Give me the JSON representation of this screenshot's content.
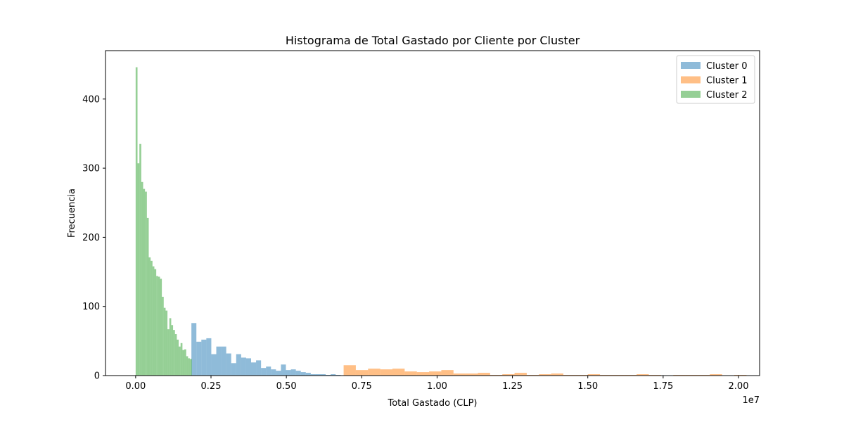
{
  "chart_data": {
    "type": "bar",
    "title": "Histograma de Total Gastado por Cliente por Cluster",
    "xlabel": "Total Gastado (CLP)",
    "ylabel": "Frecuencia",
    "x_offset_label": "1e7",
    "xlim": [
      -0.1,
      2.07
    ],
    "ylim": [
      0,
      470
    ],
    "x_ticks": [
      0.0,
      0.25,
      0.5,
      0.75,
      1.0,
      1.25,
      1.5,
      1.75,
      2.0
    ],
    "x_tick_labels": [
      "0.00",
      "0.25",
      "0.50",
      "0.75",
      "1.00",
      "1.25",
      "1.50",
      "1.75",
      "2.00"
    ],
    "y_ticks": [
      0,
      100,
      200,
      300,
      400
    ],
    "y_tick_labels": [
      "0",
      "100",
      "200",
      "300",
      "400"
    ],
    "grid": false,
    "legend_position": "top-right",
    "series": [
      {
        "name": "Cluster 0",
        "color": "#1f77b4",
        "bin_start": 0.185,
        "bin_width": 0.0165,
        "values": [
          76,
          49,
          52,
          54,
          31,
          42,
          42,
          32,
          18,
          31,
          26,
          25,
          19,
          22,
          11,
          13,
          9,
          7,
          16,
          8,
          9,
          7,
          5,
          4,
          2,
          2,
          2,
          1,
          2,
          1
        ]
      },
      {
        "name": "Cluster 1",
        "color": "#ff7f0e",
        "bin_start": 0.69,
        "bin_width": 0.0405,
        "values": [
          15,
          8,
          10,
          9,
          10,
          6,
          5,
          6,
          8,
          3,
          3,
          4,
          1,
          2,
          4,
          1,
          2,
          3,
          1,
          1,
          2,
          1,
          1,
          1,
          2,
          1,
          0,
          1,
          1,
          1,
          2,
          0,
          1,
          0
        ]
      },
      {
        "name": "Cluster 2",
        "color": "#2ca02c",
        "bin_start": 0.0,
        "bin_width": 0.00621,
        "values": [
          446,
          307,
          335,
          280,
          270,
          266,
          228,
          171,
          166,
          158,
          154,
          144,
          143,
          140,
          114,
          98,
          94,
          67,
          83,
          73,
          66,
          60,
          52,
          42,
          47,
          37,
          38,
          28,
          25,
          24
        ]
      }
    ]
  }
}
